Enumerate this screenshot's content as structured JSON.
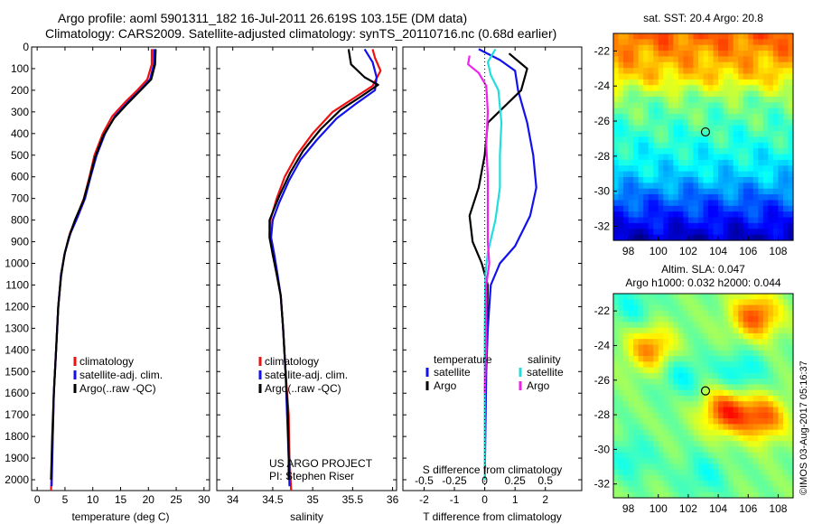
{
  "header": {
    "line1": "Argo profile: aoml 5901311_182 16-Jul-2011 26.619S 103.15E (DM data)",
    "line2": "Climatology: CARS2009. Satellite-adjusted climatology: synTS_20110716.nc (0.68d earlier)"
  },
  "stamp": "©IMOS 03-Aug-2017 05:16:37",
  "colors": {
    "climatology": "#ee1111",
    "satellite": "#1111ee",
    "argo": "#000000",
    "salinity_satellite": "#22dddd",
    "salinity_argo": "#ee22ee"
  },
  "chart_data": [
    {
      "type": "line",
      "id": "temperature",
      "xlabel": "temperature (deg C)",
      "xlim": [
        -1,
        31
      ],
      "xticks": [
        0,
        5,
        10,
        15,
        20,
        25,
        30
      ],
      "ylim": [
        2050,
        0
      ],
      "yticks": [
        0,
        100,
        200,
        300,
        400,
        500,
        600,
        700,
        800,
        900,
        1000,
        1100,
        1200,
        1300,
        1400,
        1500,
        1600,
        1700,
        1800,
        1900,
        2000
      ],
      "legend": [
        "climatology",
        "satellite-adj. clim.",
        "Argo(..raw -QC)"
      ],
      "series": [
        {
          "name": "climatology",
          "color": "#ee1111",
          "points": [
            [
              20.6,
              10
            ],
            [
              20.6,
              80
            ],
            [
              19.8,
              150
            ],
            [
              18,
              200
            ],
            [
              16,
              250
            ],
            [
              13.5,
              320
            ],
            [
              11.8,
              400
            ],
            [
              10.3,
              500
            ],
            [
              9.4,
              600
            ],
            [
              8.4,
              700
            ],
            [
              7,
              790
            ],
            [
              5.9,
              860
            ],
            [
              5.0,
              950
            ],
            [
              4.3,
              1050
            ],
            [
              3.8,
              1200
            ],
            [
              3.4,
              1400
            ],
            [
              3.0,
              1600
            ],
            [
              2.8,
              1800
            ],
            [
              2.5,
              2050
            ]
          ]
        },
        {
          "name": "satellite-adj. clim.",
          "color": "#1111ee",
          "points": [
            [
              21,
              10
            ],
            [
              21,
              80
            ],
            [
              20.3,
              150
            ],
            [
              18.5,
              200
            ],
            [
              16.5,
              250
            ],
            [
              14,
              320
            ],
            [
              12.2,
              400
            ],
            [
              10.7,
              500
            ],
            [
              9.6,
              600
            ],
            [
              8.6,
              700
            ],
            [
              7.2,
              790
            ],
            [
              6.0,
              860
            ],
            [
              5.0,
              950
            ],
            [
              4.3,
              1050
            ],
            [
              3.8,
              1200
            ],
            [
              3.4,
              1400
            ],
            [
              3.0,
              1600
            ],
            [
              2.8,
              1800
            ],
            [
              2.6,
              2030
            ]
          ]
        },
        {
          "name": "Argo(..raw -QC)",
          "color": "#000000",
          "points": [
            [
              21.3,
              10
            ],
            [
              21.2,
              80
            ],
            [
              20.5,
              150
            ],
            [
              18.6,
              200
            ],
            [
              16.3,
              260
            ],
            [
              13.8,
              330
            ],
            [
              11.9,
              410
            ],
            [
              10.4,
              510
            ],
            [
              9.4,
              610
            ],
            [
              8.3,
              710
            ],
            [
              6.8,
              800
            ],
            [
              5.7,
              880
            ],
            [
              4.9,
              960
            ],
            [
              4.3,
              1060
            ],
            [
              3.8,
              1200
            ],
            [
              3.4,
              1400
            ],
            [
              3.0,
              1600
            ],
            [
              2.7,
              1800
            ],
            [
              2.5,
              2000
            ]
          ]
        }
      ]
    },
    {
      "type": "line",
      "id": "salinity",
      "xlabel": "salinity",
      "xlim": [
        33.8,
        36.05
      ],
      "xticks": [
        34,
        34.5,
        35,
        35.5,
        36
      ],
      "xticklabels": [
        "34",
        "34.5",
        "35",
        "35.5",
        "36"
      ],
      "ylim": [
        2050,
        0
      ],
      "legend": [
        "climatology",
        "satellite-adj. clim.",
        "Argo(..raw -QC)"
      ],
      "annotations": [
        "US ARGO PROJECT",
        "PI: Stephen Riser"
      ],
      "series": [
        {
          "name": "climatology",
          "color": "#ee1111",
          "points": [
            [
              35.75,
              10
            ],
            [
              35.78,
              50
            ],
            [
              35.85,
              110
            ],
            [
              35.75,
              180
            ],
            [
              35.5,
              240
            ],
            [
              35.25,
              300
            ],
            [
              35.0,
              400
            ],
            [
              34.8,
              500
            ],
            [
              34.65,
              600
            ],
            [
              34.55,
              700
            ],
            [
              34.47,
              800
            ],
            [
              34.46,
              880
            ],
            [
              34.5,
              950
            ],
            [
              34.55,
              1050
            ],
            [
              34.6,
              1150
            ],
            [
              34.63,
              1300
            ],
            [
              34.66,
              1500
            ],
            [
              34.7,
              1700
            ],
            [
              34.71,
              1900
            ],
            [
              34.73,
              2050
            ]
          ]
        },
        {
          "name": "satellite-adj. clim.",
          "color": "#1111ee",
          "points": [
            [
              35.65,
              10
            ],
            [
              35.75,
              70
            ],
            [
              35.8,
              140
            ],
            [
              35.78,
              200
            ],
            [
              35.55,
              260
            ],
            [
              35.3,
              330
            ],
            [
              35.05,
              430
            ],
            [
              34.85,
              520
            ],
            [
              34.7,
              620
            ],
            [
              34.58,
              720
            ],
            [
              34.5,
              800
            ],
            [
              34.48,
              880
            ],
            [
              34.52,
              960
            ],
            [
              34.56,
              1050
            ],
            [
              34.6,
              1150
            ],
            [
              34.63,
              1300
            ],
            [
              34.66,
              1500
            ],
            [
              34.68,
              1700
            ],
            [
              34.7,
              1900
            ],
            [
              34.71,
              2030
            ]
          ]
        },
        {
          "name": "Argo(..raw -QC)",
          "color": "#000000",
          "points": [
            [
              35.45,
              10
            ],
            [
              35.48,
              80
            ],
            [
              35.65,
              140
            ],
            [
              35.82,
              175
            ],
            [
              35.6,
              230
            ],
            [
              35.35,
              290
            ],
            [
              35.1,
              380
            ],
            [
              34.88,
              480
            ],
            [
              34.72,
              580
            ],
            [
              34.58,
              690
            ],
            [
              34.46,
              800
            ],
            [
              34.46,
              880
            ],
            [
              34.5,
              960
            ],
            [
              34.55,
              1050
            ],
            [
              34.6,
              1150
            ],
            [
              34.63,
              1300
            ],
            [
              34.66,
              1500
            ],
            [
              34.69,
              1700
            ],
            [
              34.7,
              1900
            ],
            [
              34.7,
              2000
            ]
          ]
        }
      ]
    },
    {
      "type": "line",
      "id": "difference",
      "xlabel": "T difference from climatology",
      "xlabel2": "S difference from climatology",
      "xlim": [
        -2.7,
        3.2
      ],
      "xticks": [
        -2,
        -1,
        0,
        1,
        2
      ],
      "xticks2": [
        -0.5,
        -0.25,
        0,
        0.25,
        0.5
      ],
      "xticklabels2": [
        "-0.5",
        "-0.25",
        "0",
        "0.25",
        "0.5"
      ],
      "ylim": [
        2050,
        0
      ],
      "legend_groups": {
        "temperature": [
          "satellite",
          "Argo"
        ],
        "salinity": [
          "satellite",
          "Argo"
        ]
      },
      "series": [
        {
          "name": "temperature satellite",
          "color": "#1111ee",
          "points": [
            [
              -0.2,
              10
            ],
            [
              0.5,
              60
            ],
            [
              1.0,
              110
            ],
            [
              1.1,
              200
            ],
            [
              1.4,
              350
            ],
            [
              1.6,
              500
            ],
            [
              1.7,
              650
            ],
            [
              1.5,
              780
            ],
            [
              1.0,
              920
            ],
            [
              0.5,
              1000
            ],
            [
              0.2,
              1100
            ],
            [
              0.1,
              1300
            ],
            [
              0.05,
              1500
            ],
            [
              0,
              2000
            ]
          ]
        },
        {
          "name": "temperature Argo",
          "color": "#000000",
          "points": [
            [
              0.8,
              30
            ],
            [
              1.4,
              100
            ],
            [
              1.2,
              200
            ],
            [
              0.1,
              350
            ],
            [
              0.0,
              500
            ],
            [
              -0.2,
              650
            ],
            [
              -0.5,
              780
            ],
            [
              -0.4,
              900
            ],
            [
              -0.1,
              1000
            ],
            [
              0.1,
              1100
            ],
            [
              0.05,
              1400
            ],
            [
              0,
              1600
            ]
          ]
        },
        {
          "name": "salinity satellite",
          "color": "#22dddd",
          "points": [
            [
              0.35,
              10
            ],
            [
              0.1,
              70
            ],
            [
              0.2,
              130
            ],
            [
              0.45,
              200
            ],
            [
              0.55,
              350
            ],
            [
              0.5,
              500
            ],
            [
              0.5,
              650
            ],
            [
              0.35,
              800
            ],
            [
              0.1,
              950
            ],
            [
              0.02,
              1050
            ],
            [
              0.0,
              1300
            ],
            [
              0.0,
              2000
            ]
          ]
        },
        {
          "name": "salinity Argo",
          "color": "#ee22ee",
          "points": [
            [
              -0.5,
              40
            ],
            [
              -0.55,
              80
            ],
            [
              -0.2,
              120
            ],
            [
              0.05,
              180
            ],
            [
              0.1,
              300
            ],
            [
              0.05,
              450
            ],
            [
              0.1,
              600
            ],
            [
              0.1,
              750
            ],
            [
              0.1,
              900
            ],
            [
              0.15,
              1000
            ],
            [
              0.05,
              1100
            ],
            [
              0.05,
              1400
            ],
            [
              0.0,
              1600
            ]
          ]
        }
      ]
    },
    {
      "type": "heatmap",
      "id": "sst-map",
      "title": "sat. SST: 20.4  Argo: 20.8",
      "xlim": [
        97,
        109
      ],
      "ylim": [
        -32.8,
        -21
      ],
      "xticks": [
        98,
        100,
        102,
        104,
        106,
        108
      ],
      "yticks": [
        -22,
        -24,
        -26,
        -28,
        -30,
        -32
      ],
      "marker": [
        103.15,
        -26.619
      ],
      "colormap": "jet",
      "bands": [
        {
          "lat": -21.0,
          "value": 0.78
        },
        {
          "lat": -23.5,
          "value": 0.66
        },
        {
          "lat": -24.8,
          "value": 0.5
        },
        {
          "lat": -27.0,
          "value": 0.42
        },
        {
          "lat": -29.0,
          "value": 0.34
        },
        {
          "lat": -30.5,
          "value": 0.22
        },
        {
          "lat": -32.8,
          "value": 0.06
        }
      ]
    },
    {
      "type": "heatmap",
      "id": "sla-map",
      "title": "Altim. SLA: 0.047",
      "subtitle": "Argo h1000: 0.032 h2000: 0.044",
      "xlim": [
        97,
        109
      ],
      "ylim": [
        -32.8,
        -21
      ],
      "xticks": [
        98,
        100,
        102,
        104,
        106,
        108
      ],
      "yticks": [
        -22,
        -24,
        -26,
        -28,
        -30,
        -32
      ],
      "marker": [
        103.15,
        -26.619
      ],
      "colormap": "jet",
      "baseline": 0.5,
      "blobs": [
        {
          "lon": 99.5,
          "lat": -24.2,
          "value": 0.75
        },
        {
          "lon": 106.5,
          "lat": -22.3,
          "value": 0.8
        },
        {
          "lon": 104.5,
          "lat": -27.8,
          "value": 0.82
        },
        {
          "lon": 107.0,
          "lat": -28.2,
          "value": 0.78
        },
        {
          "lon": 98.2,
          "lat": -30.5,
          "value": 0.4
        },
        {
          "lon": 101.5,
          "lat": -25.7,
          "value": 0.38
        },
        {
          "lon": 105.5,
          "lat": -25.6,
          "value": 0.36
        },
        {
          "lon": 98.3,
          "lat": -21.8,
          "value": 0.4
        },
        {
          "lon": 103.0,
          "lat": -31.5,
          "value": 0.4
        }
      ]
    }
  ]
}
